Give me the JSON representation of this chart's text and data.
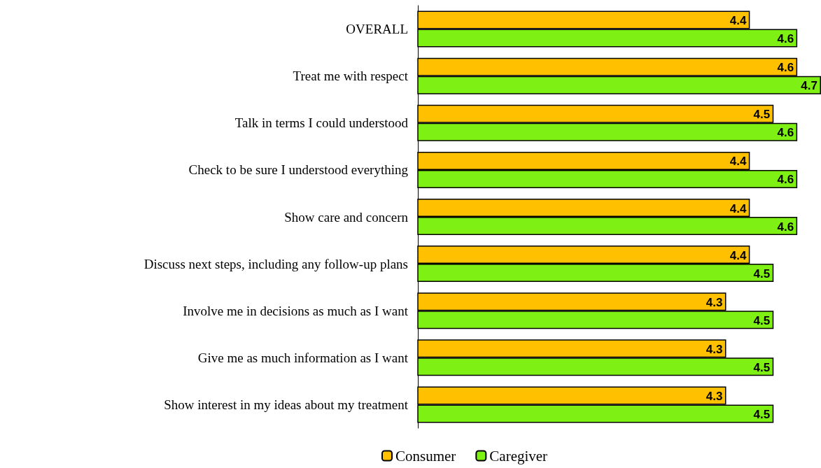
{
  "chart_data": {
    "type": "bar",
    "orientation": "horizontal",
    "categories": [
      "OVERALL",
      "Treat me with respect",
      "Talk in terms I could understood",
      "Check to be sure I understood everything",
      "Show care and concern",
      "Discuss next steps, including any follow-up plans",
      "Involve me in decisions as much as I want",
      "Give me as much information as I want",
      "Show interest in my ideas about my treatment"
    ],
    "series": [
      {
        "name": "Consumer",
        "color": "#ffc000",
        "values": [
          4.4,
          4.6,
          4.5,
          4.4,
          4.4,
          4.4,
          4.3,
          4.3,
          4.3
        ]
      },
      {
        "name": "Caregiver",
        "color": "#7ff014",
        "values": [
          4.6,
          4.7,
          4.6,
          4.6,
          4.6,
          4.5,
          4.5,
          4.5,
          4.5
        ]
      }
    ],
    "xlim": [
      3,
      4.7
    ],
    "data_labels": true,
    "grid": false,
    "legend": "bottom"
  }
}
